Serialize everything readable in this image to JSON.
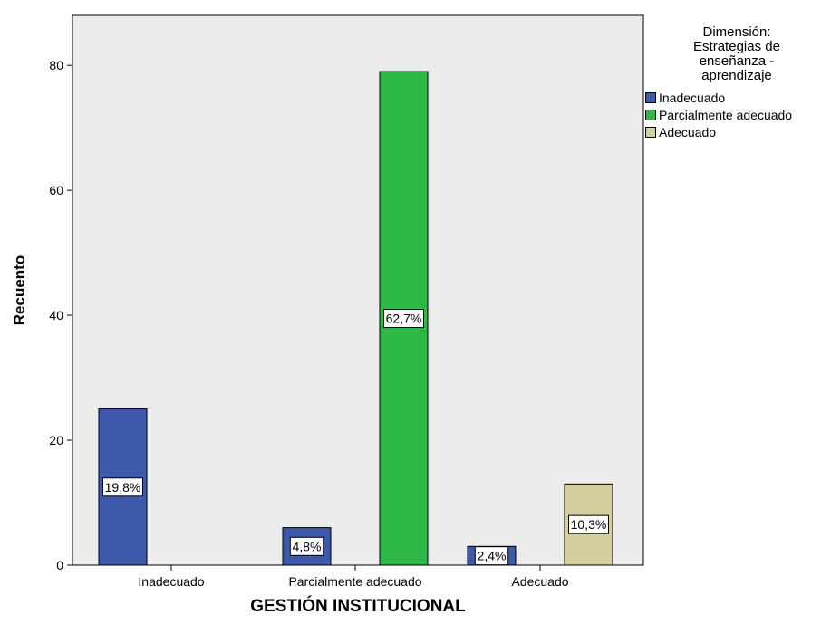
{
  "legend": {
    "title_lines": [
      "Dimensión:",
      "Estrategias de",
      "enseñanza -",
      "aprendizaje"
    ]
  },
  "colors": {
    "plot_background": "#ECECEC",
    "Inadecuado": "#3E58AC",
    "Parcialmente adecuado": "#2EB848",
    "Adecuado": "#D5CE9E"
  },
  "chart_data": {
    "type": "bar",
    "xlabel": "GESTIÓN INSTITUCIONAL",
    "ylabel": "Recuento",
    "ylim": [
      0,
      88
    ],
    "yticks": [
      0,
      20,
      40,
      60,
      80
    ],
    "grid": false,
    "legend_position": "right",
    "categories": [
      "Inadecuado",
      "Parcialmente adecuado",
      "Adecuado"
    ],
    "series": [
      {
        "name": "Inadecuado",
        "values": [
          25,
          6,
          3
        ],
        "labels": [
          "19,8%",
          "4,8%",
          "2,4%"
        ]
      },
      {
        "name": "Parcialmente adecuado",
        "values": [
          0,
          79,
          0
        ],
        "labels": [
          "",
          "62,7%",
          ""
        ]
      },
      {
        "name": "Adecuado",
        "values": [
          0,
          0,
          13
        ],
        "labels": [
          "",
          "",
          "10,3%"
        ]
      }
    ]
  }
}
